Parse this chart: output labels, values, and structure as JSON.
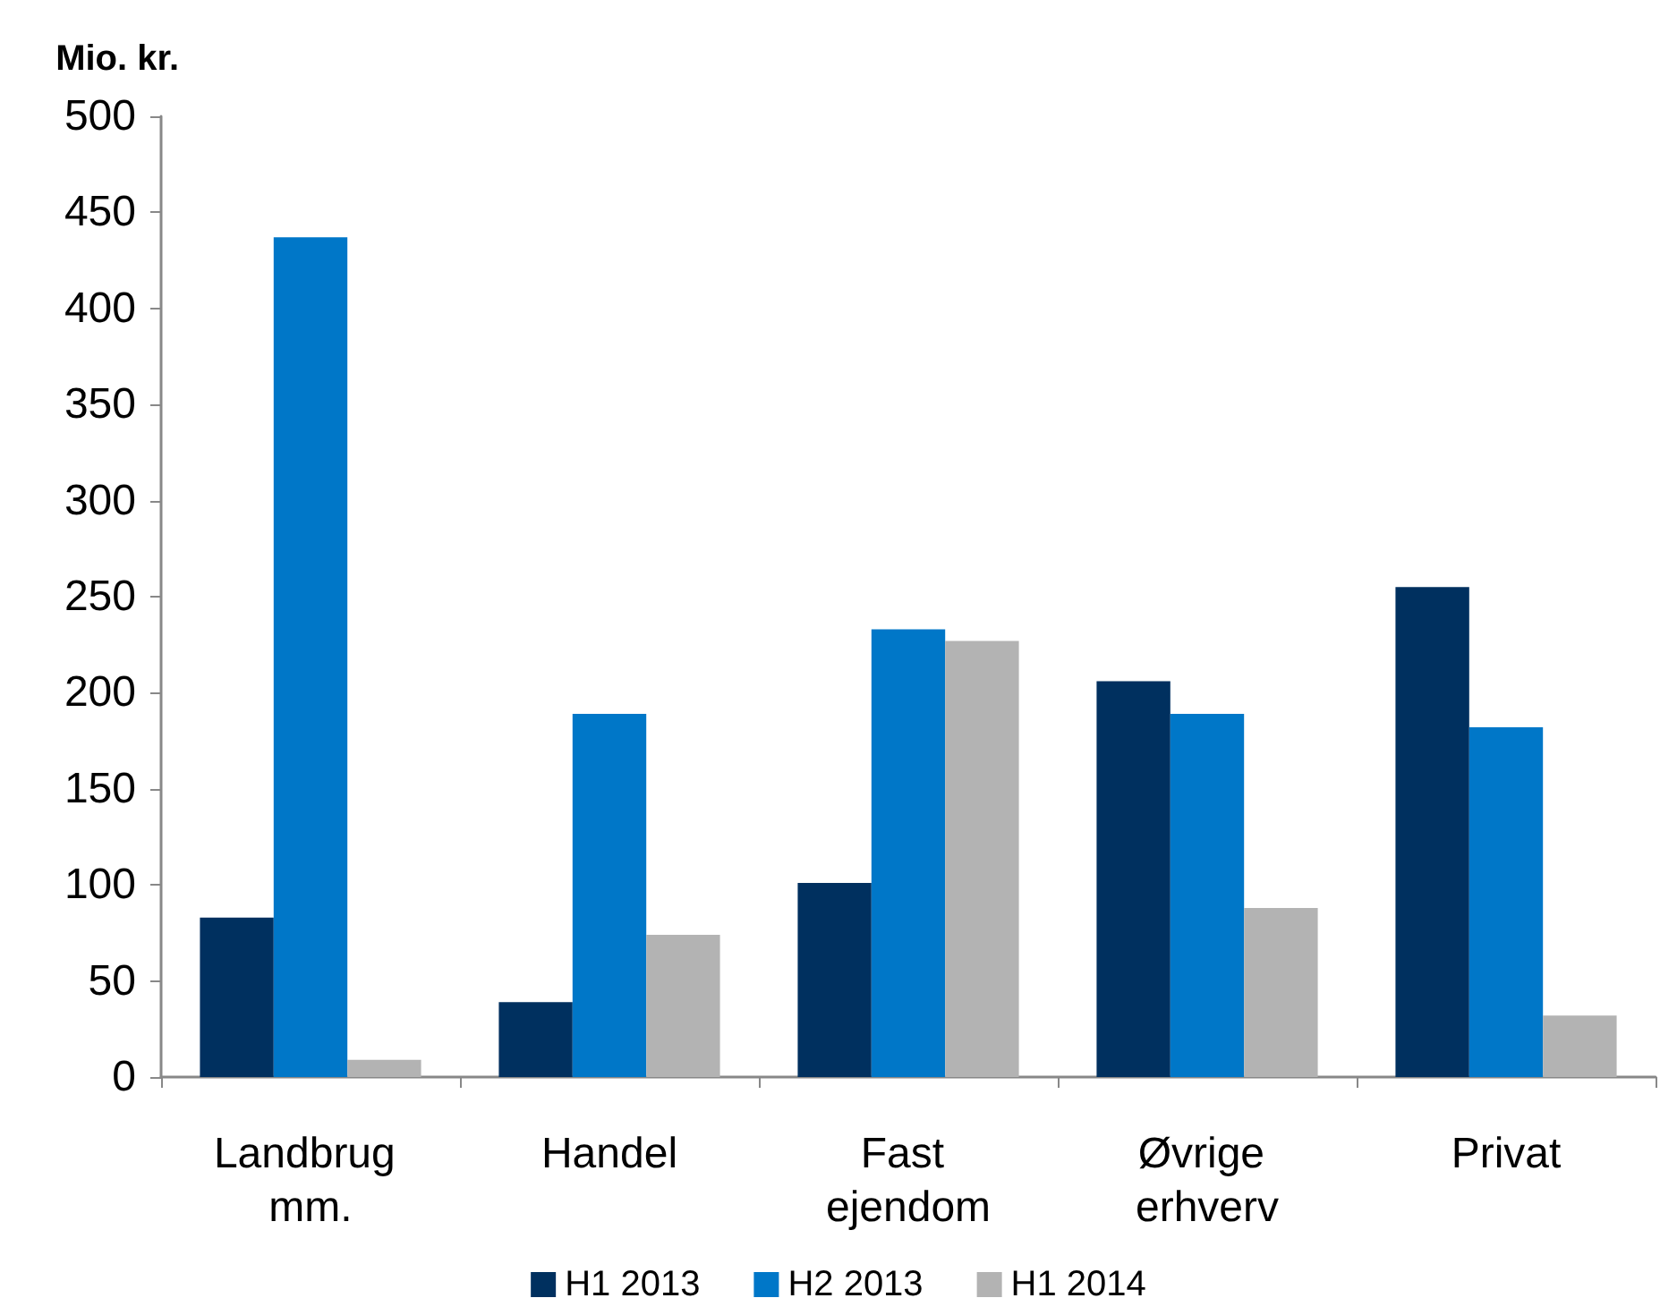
{
  "chart_data": {
    "type": "bar",
    "ylabel": "Mio. kr.",
    "categories": [
      "Landbrug mm.",
      "Handel",
      "Fast ejendom",
      "Øvrige erhverv",
      "Privat"
    ],
    "series": [
      {
        "name": "H1 2013",
        "color": "#00305f",
        "values": [
          83,
          39,
          101,
          206,
          255
        ]
      },
      {
        "name": "H2 2013",
        "color": "#0077c8",
        "values": [
          437,
          189,
          233,
          189,
          182
        ]
      },
      {
        "name": "H1 2014",
        "color": "#b3b3b3",
        "values": [
          9,
          74,
          227,
          88,
          32
        ]
      }
    ],
    "ylim": [
      0,
      500
    ],
    "yticks": [
      0,
      50,
      100,
      150,
      200,
      250,
      300,
      350,
      400,
      450,
      500
    ],
    "grid": false,
    "legend": "bottom"
  }
}
